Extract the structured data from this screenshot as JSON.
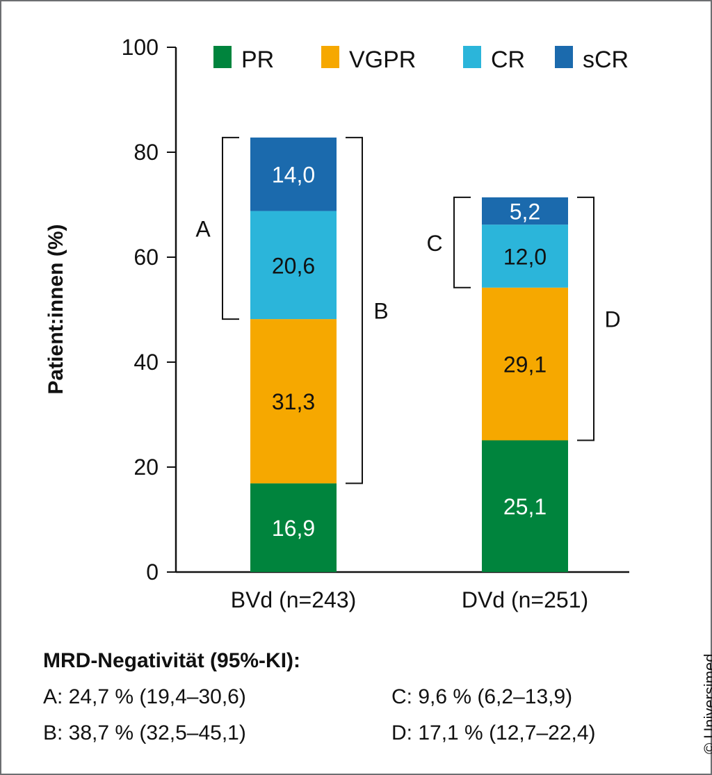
{
  "chart_data": {
    "type": "bar",
    "stacked": true,
    "ylabel": "Patient:innen (%)",
    "ylim": [
      0,
      100
    ],
    "yticks": [
      "0",
      "20",
      "40",
      "60",
      "80",
      "100"
    ],
    "grid": false,
    "legend_placement": "top",
    "categories": [
      "BVd (n=243)",
      "DVd (n=251)"
    ],
    "series": [
      {
        "name": "PR",
        "color": "#00843d",
        "values": [
          16.9,
          25.1
        ],
        "labels": [
          "16,9",
          "25,1"
        ]
      },
      {
        "name": "VGPR",
        "color": "#f6a800",
        "values": [
          31.3,
          29.1
        ],
        "labels": [
          "31,3",
          "29,1"
        ]
      },
      {
        "name": "CR",
        "color": "#2bb5da",
        "values": [
          20.6,
          12.0
        ],
        "labels": [
          "20,6",
          "12,0"
        ]
      },
      {
        "name": "sCR",
        "color": "#1b6aad",
        "values": [
          14.0,
          5.2
        ],
        "labels": [
          "14,0",
          "5,2"
        ]
      }
    ],
    "brackets": [
      {
        "label": "A",
        "category": 0,
        "side": "left",
        "from_series": "CR",
        "to_series": "sCR"
      },
      {
        "label": "B",
        "category": 0,
        "side": "right",
        "from_series": "VGPR",
        "to_series": "sCR"
      },
      {
        "label": "C",
        "category": 1,
        "side": "left",
        "from_series": "CR",
        "to_series": "sCR"
      },
      {
        "label": "D",
        "category": 1,
        "side": "right",
        "from_series": "VGPR",
        "to_series": "sCR"
      }
    ]
  },
  "notes": {
    "heading": "MRD-Negativität (95%-KI):",
    "a": "A: 24,7 % (19,4–30,6)",
    "b": "B: 38,7 % (32,5–45,1)",
    "c": "C: 9,6 % (6,2–13,9)",
    "d": "D: 17,1 % (12,7–22,4)"
  },
  "copyright": "© Universimed"
}
